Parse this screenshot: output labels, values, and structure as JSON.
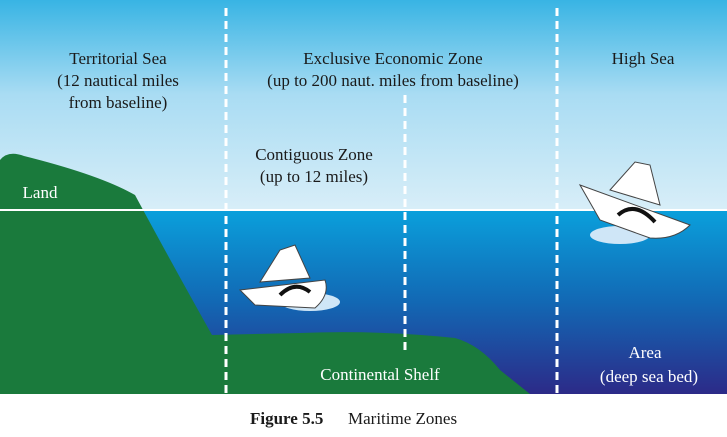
{
  "zones": {
    "territorial_sea": [
      "Territorial Sea",
      "(12 nautical miles",
      "from baseline)"
    ],
    "eez": [
      "Exclusive Economic Zone",
      "(up to 200 naut. miles from baseline)"
    ],
    "high_sea": [
      "High Sea"
    ],
    "contiguous_zone": [
      "Contiguous Zone",
      "(up to 12 miles)"
    ]
  },
  "labels": {
    "land": "Land",
    "continental_shelf": "Continental Shelf",
    "area": [
      "Area",
      "(deep sea bed)"
    ]
  },
  "caption": {
    "number": "Figure 5.5",
    "title": "Maritime Zones"
  }
}
